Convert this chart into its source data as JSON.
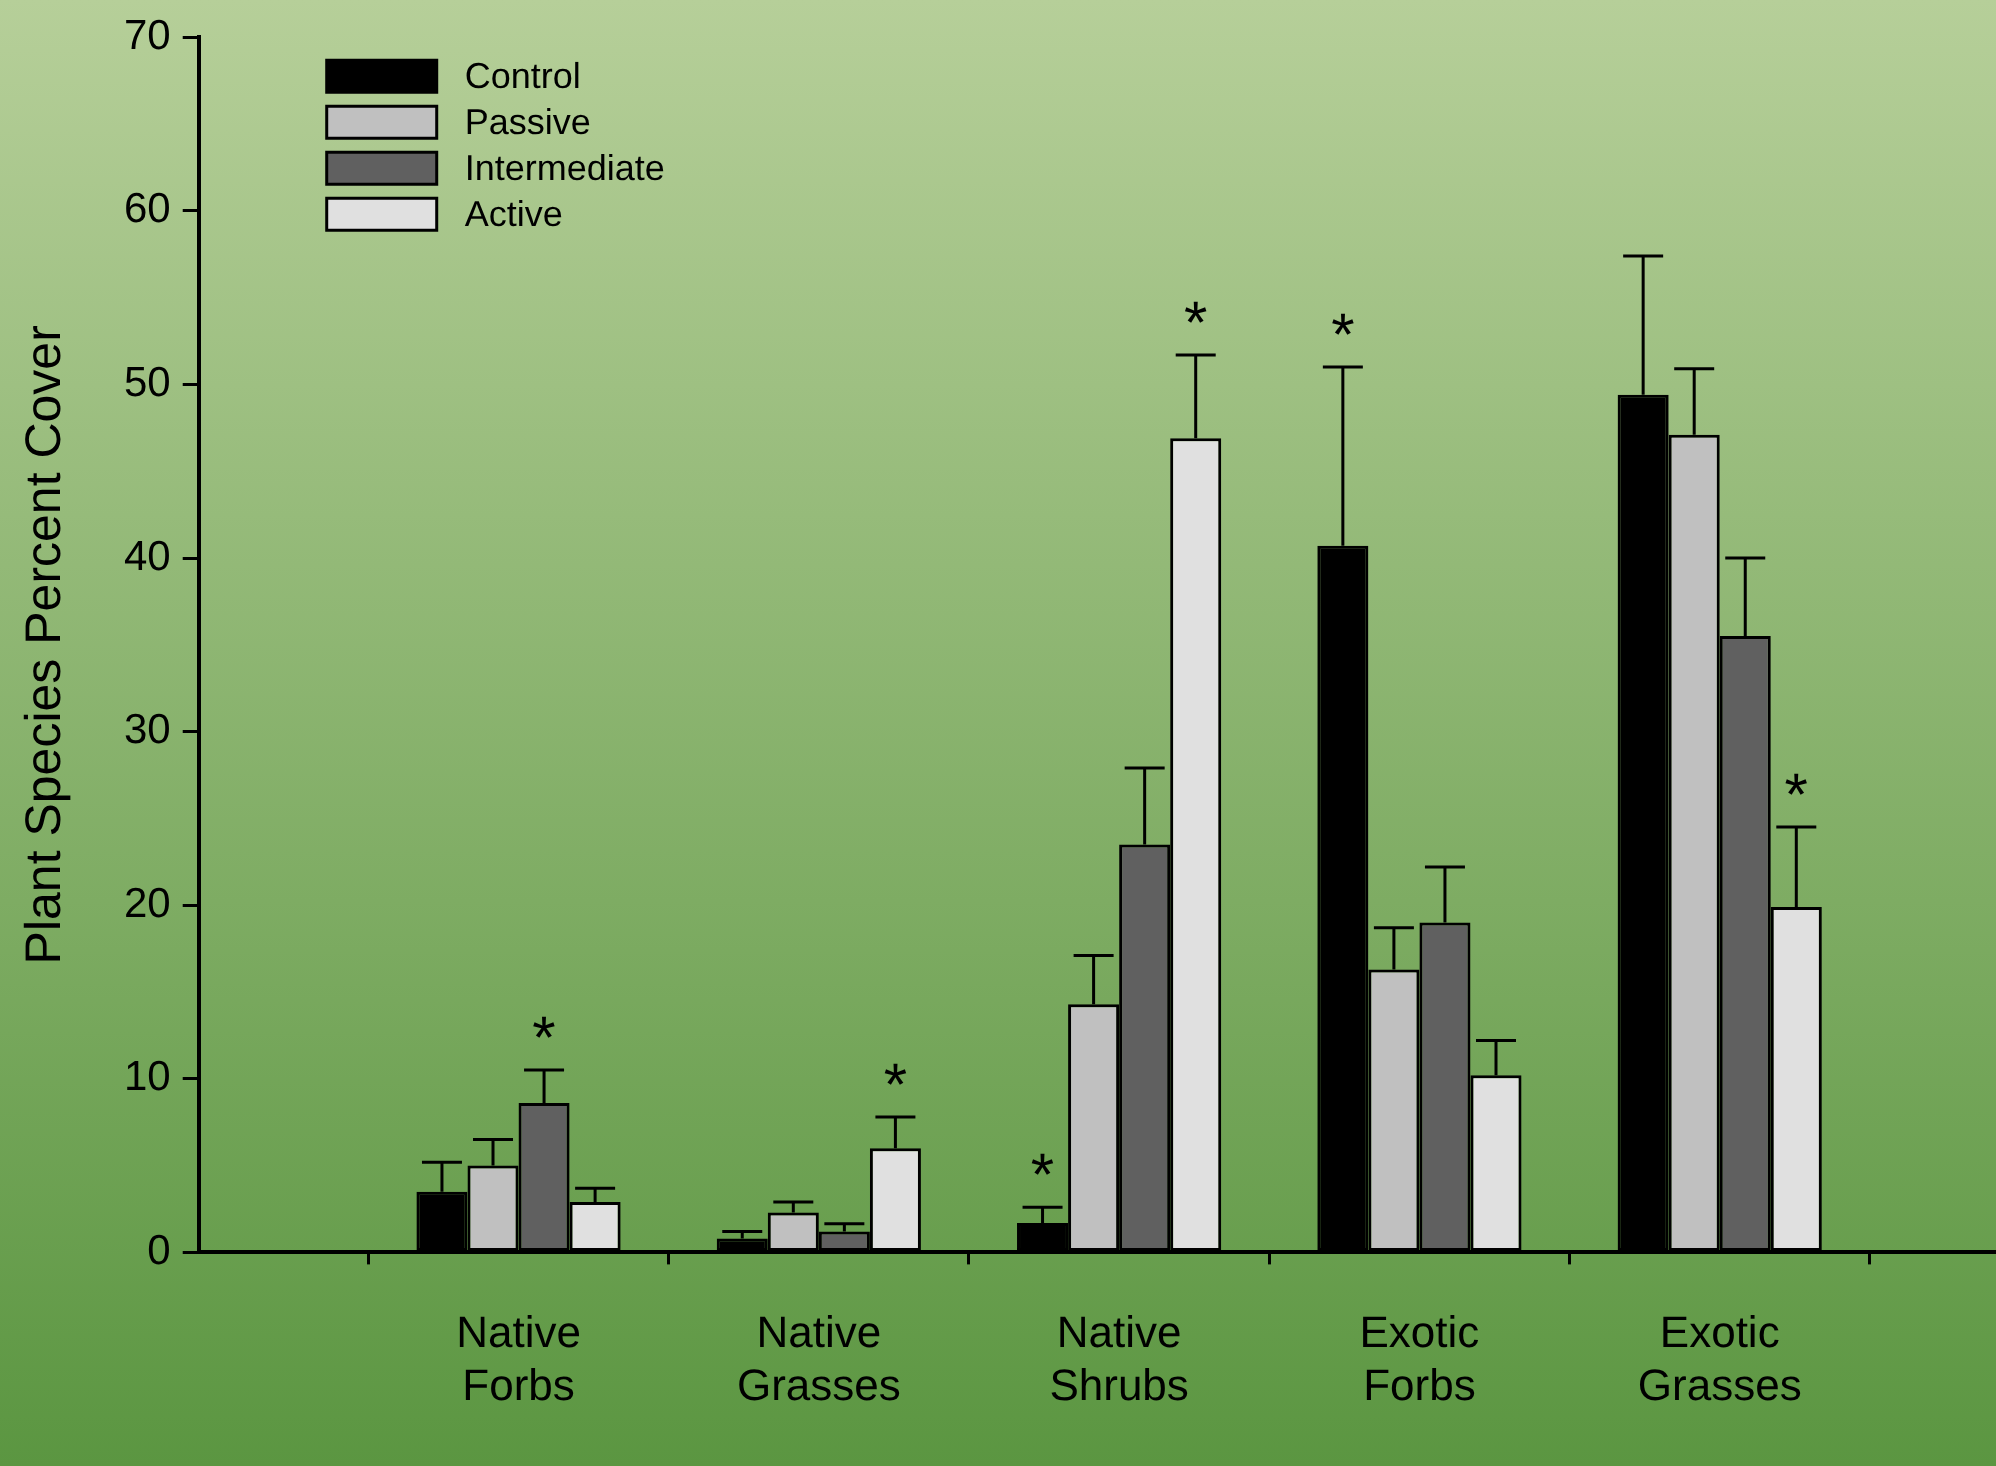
{
  "chart_data": {
    "type": "bar",
    "ylabel": "Plant Species Percent Cover",
    "categories": [
      "Native Forbs",
      "Native Grasses",
      "Native Shrubs",
      "Exotic Forbs",
      "Exotic Grasses"
    ],
    "series": [
      {
        "name": "Control",
        "color": "#000000",
        "values": [
          3.5,
          0.8,
          1.7,
          40.7,
          49.4
        ],
        "errors": [
          [
            3.5,
            5.2
          ],
          [
            0.8,
            1.2
          ],
          [
            1.7,
            2.6
          ],
          [
            40.7,
            51.0
          ],
          [
            49.4,
            57.4
          ]
        ]
      },
      {
        "name": "Passive",
        "color": "#c0c0c0",
        "values": [
          5.0,
          2.3,
          14.3,
          16.3,
          47.1
        ],
        "errors": [
          [
            5.0,
            6.5
          ],
          [
            2.3,
            2.9
          ],
          [
            14.3,
            17.1
          ],
          [
            16.3,
            18.7
          ],
          [
            47.1,
            50.9
          ]
        ]
      },
      {
        "name": "Intermediate",
        "color": "#606060",
        "values": [
          8.6,
          1.2,
          23.5,
          19.0,
          35.5
        ],
        "errors": [
          [
            8.6,
            10.5
          ],
          [
            1.2,
            1.65
          ],
          [
            23.5,
            27.9
          ],
          [
            19.0,
            22.2
          ],
          [
            35.5,
            40.0
          ]
        ]
      },
      {
        "name": "Active",
        "color": "#e0e0e0",
        "values": [
          2.9,
          6.0,
          46.9,
          10.2,
          19.9
        ],
        "errors": [
          [
            2.9,
            3.7
          ],
          [
            6.0,
            7.8
          ],
          [
            46.9,
            51.7
          ],
          [
            10.2,
            12.2
          ],
          [
            19.9,
            24.5
          ]
        ]
      }
    ],
    "ylim": [
      0,
      70
    ],
    "yticks": [
      0,
      10,
      20,
      30,
      40,
      50,
      60,
      70
    ],
    "grid": false,
    "legend": "top left",
    "annotations": [
      {
        "text": "*",
        "x": "Native Forbs",
        "y": 8.6
      },
      "*",
      {
        "text": "*",
        "x": "Native Shrubs",
        "y": 1.7
      },
      "*",
      "*",
      {
        "text": "*",
        "x": "Exotic Grasses",
        "y": 19.9
      }
    ]
  }
}
